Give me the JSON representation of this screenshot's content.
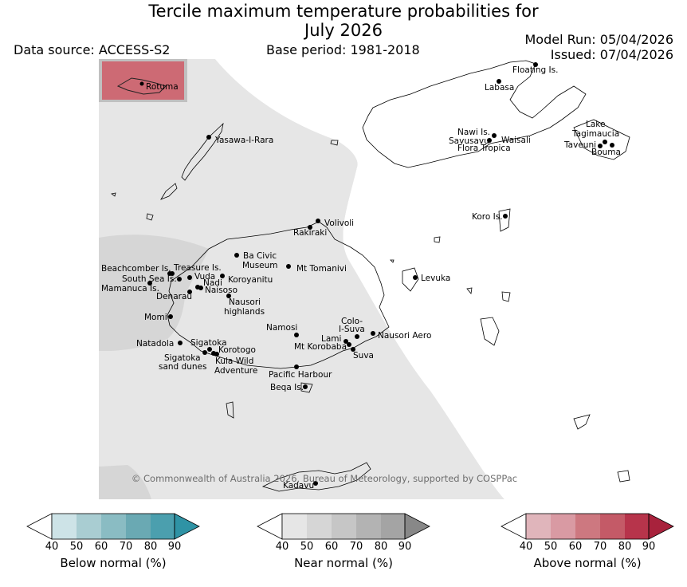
{
  "title_line1": "Tercile maximum temperature probabilities for",
  "title_line2": "July 2026",
  "data_source": "Data source: ACCESS-S2",
  "base_period": "Base period: 1981-2018",
  "model_run": "Model Run: 05/04/2026",
  "issued": "Issued: 07/04/2026",
  "copyright": "© Commonwealth of Australia 2026, Bureau of Meteorology, supported by COSPPac",
  "inset_label": "Rotuma",
  "places": [
    "Floating Is.",
    "Labasa",
    "Yasawa-I-Rara",
    "Nawi Is.",
    "Savusavu",
    "Waisali",
    "Flora Tropica",
    "Lake",
    "Tagimaucia",
    "Taveuni",
    "Bouma",
    "Volivoli",
    "Rakiraki",
    "Koro Is.",
    "Beachcomber Is.",
    "Treasure Is.",
    "Ba Civic",
    "Museum",
    "Mt Tomanivi",
    "South Sea Is.",
    "Vuda",
    "Koroyanitu",
    "Nadi",
    "Naisoso",
    "Mamanuca Is.",
    "Denarau",
    "Levuka",
    "Nausori",
    "highlands",
    "Momi",
    "Colo-",
    "I-Suva",
    "Namosi",
    "Lami",
    "Nausori Aero",
    "Mt Korobaba",
    "Sigatoka",
    "Natadola",
    "Korotogo",
    "Suva",
    "Sigatoka",
    "sand dunes",
    "Kula Wild",
    "Adventure",
    "Pacific Harbour",
    "Beqa Is.",
    "Kadavu"
  ],
  "colorbars": [
    {
      "label": "Below normal (%)",
      "ticks": [
        "40",
        "50",
        "60",
        "70",
        "80",
        "90"
      ],
      "colors": [
        "#cde3e7",
        "#a9cdd2",
        "#8abcc3",
        "#6aa9b3",
        "#4b9fae",
        "#2f93a5"
      ]
    },
    {
      "label": "Near normal (%)",
      "ticks": [
        "40",
        "50",
        "60",
        "70",
        "80",
        "90"
      ],
      "colors": [
        "#e6e6e6",
        "#d6d6d6",
        "#c6c6c6",
        "#b3b3b3",
        "#a4a4a4",
        "#888888"
      ]
    },
    {
      "label": "Above normal (%)",
      "ticks": [
        "40",
        "50",
        "60",
        "70",
        "80",
        "90"
      ],
      "colors": [
        "#e0b5bb",
        "#d99aa3",
        "#cd7880",
        "#c45a67",
        "#b7344b",
        "#a8223c"
      ]
    }
  ],
  "colors": {
    "near_normal_40": "#e6e6e6",
    "near_normal_50": "#d6d6d6",
    "above_normal_inset": "#cd6a74"
  }
}
